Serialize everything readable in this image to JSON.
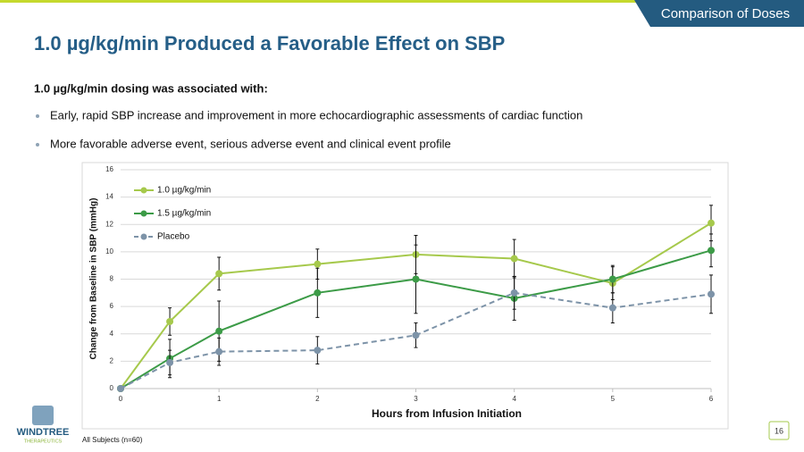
{
  "slide": {
    "tag": "Comparison of Doses",
    "title": "1.0 µg/kg/min Produced a Favorable Effect on SBP",
    "lead": "1.0 µg/kg/min dosing was associated with:",
    "bullets": [
      "Early, rapid SBP increase and improvement  in more echocardiographic assessments of cardiac function",
      "More favorable adverse event, serious adverse event and clinical event profile"
    ],
    "footnote": "All Subjects (n=60)",
    "page": "16",
    "logo": {
      "name": "WINDTREE",
      "sub": "THERAPEUTICS"
    }
  },
  "chart_data": {
    "type": "line",
    "x_label": "Hours from Infusion Initiation",
    "y_label": "Change from Baseline in SBP (mmHg)",
    "x": [
      0,
      0.5,
      1,
      2,
      3,
      4,
      5,
      6
    ],
    "xlim": [
      0,
      6
    ],
    "xticks": [
      0,
      1,
      2,
      3,
      4,
      5,
      6
    ],
    "ylim": [
      0,
      16
    ],
    "yticks": [
      0,
      2,
      4,
      6,
      8,
      10,
      12,
      14,
      16
    ],
    "grid": true,
    "legend": "upper-left",
    "series": [
      {
        "name": "1.0 µg/kg/min",
        "color": "#a6c94c",
        "dash": false,
        "values": [
          0,
          4.9,
          8.4,
          9.1,
          9.8,
          9.5,
          7.7,
          12.1
        ],
        "errors": [
          null,
          1.0,
          1.2,
          1.1,
          1.4,
          1.4,
          1.2,
          1.3
        ]
      },
      {
        "name": "1.5 µg/kg/min",
        "color": "#3c9b47",
        "dash": false,
        "values": [
          0,
          2.2,
          4.2,
          7.0,
          8.0,
          6.6,
          8.0,
          10.1
        ],
        "errors": [
          null,
          1.4,
          2.2,
          1.8,
          2.5,
          1.6,
          1.0,
          1.2
        ]
      },
      {
        "name": "Placebo",
        "color": "#7d93a8",
        "dash": true,
        "values": [
          0,
          1.9,
          2.7,
          2.8,
          3.9,
          7.0,
          5.9,
          6.9
        ],
        "errors": [
          null,
          0.9,
          1.0,
          1.0,
          0.9,
          1.2,
          1.1,
          1.4
        ]
      }
    ]
  }
}
